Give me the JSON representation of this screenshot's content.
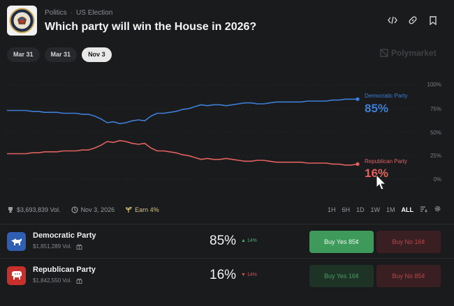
{
  "header": {
    "breadcrumb": [
      "Politics",
      "US Election"
    ],
    "title": "Which party will win the House in 2026?"
  },
  "date_tabs": [
    {
      "label": "Mar 31",
      "active": false
    },
    {
      "label": "Mar 31",
      "active": false
    },
    {
      "label": "Nov 3",
      "active": true
    }
  ],
  "watermark": "Polymarket",
  "chart_data": {
    "type": "line",
    "y_ticks": [
      "100%",
      "75%",
      "50%",
      "25%",
      "0%"
    ],
    "ylim": [
      0,
      100
    ],
    "series": [
      {
        "name": "Democratic Party",
        "color": "#3d7fd6",
        "current_label": "85%",
        "values": [
          73,
          73,
          73,
          73,
          72,
          72,
          71,
          71,
          71,
          70,
          70,
          70,
          69,
          69,
          67,
          64,
          60,
          61,
          59,
          60,
          62,
          63,
          62,
          67,
          70,
          70,
          71,
          72,
          74,
          75,
          77,
          79,
          78,
          79,
          79,
          78,
          79,
          80,
          81,
          81,
          80,
          80,
          81,
          82,
          82,
          82,
          82,
          82,
          83,
          83,
          83,
          83,
          84,
          84,
          85,
          85,
          85
        ]
      },
      {
        "name": "Republican Party",
        "color": "#e0625e",
        "current_label": "16%",
        "values": [
          27,
          27,
          27,
          27,
          28,
          28,
          29,
          29,
          29,
          30,
          30,
          30,
          31,
          31,
          33,
          36,
          40,
          39,
          41,
          40,
          38,
          37,
          38,
          33,
          30,
          30,
          29,
          28,
          26,
          25,
          23,
          21,
          22,
          21,
          21,
          22,
          21,
          20,
          19,
          19,
          20,
          20,
          19,
          18,
          18,
          18,
          18,
          18,
          17,
          17,
          17,
          17,
          16,
          16,
          15,
          15,
          16
        ]
      }
    ]
  },
  "meta": {
    "volume": "$3,693,839 Vol.",
    "end_date": "Nov 3, 2026",
    "earn": "Earn 4%"
  },
  "ranges": [
    {
      "label": "1H",
      "active": false
    },
    {
      "label": "6H",
      "active": false
    },
    {
      "label": "1D",
      "active": false
    },
    {
      "label": "1W",
      "active": false
    },
    {
      "label": "1M",
      "active": false
    },
    {
      "label": "ALL",
      "active": true
    }
  ],
  "outcomes": [
    {
      "name": "Democratic Party",
      "volume": "$1,851,289 Vol.",
      "percent": "85%",
      "change": "▲ 14%",
      "change_color": "#4caf6a",
      "buy_yes": "Buy Yes 85¢",
      "buy_no": "Buy No 16¢",
      "icon": "donkey-icon",
      "icon_bg": "#2f5fb3"
    },
    {
      "name": "Republican Party",
      "volume": "$1,842,550 Vol.",
      "percent": "16%",
      "change": "▼ 14%",
      "change_color": "#d9534f",
      "buy_yes": "Buy Yes 16¢",
      "buy_no": "Buy No 85¢",
      "icon": "elephant-icon",
      "icon_bg": "#c8302c"
    }
  ]
}
